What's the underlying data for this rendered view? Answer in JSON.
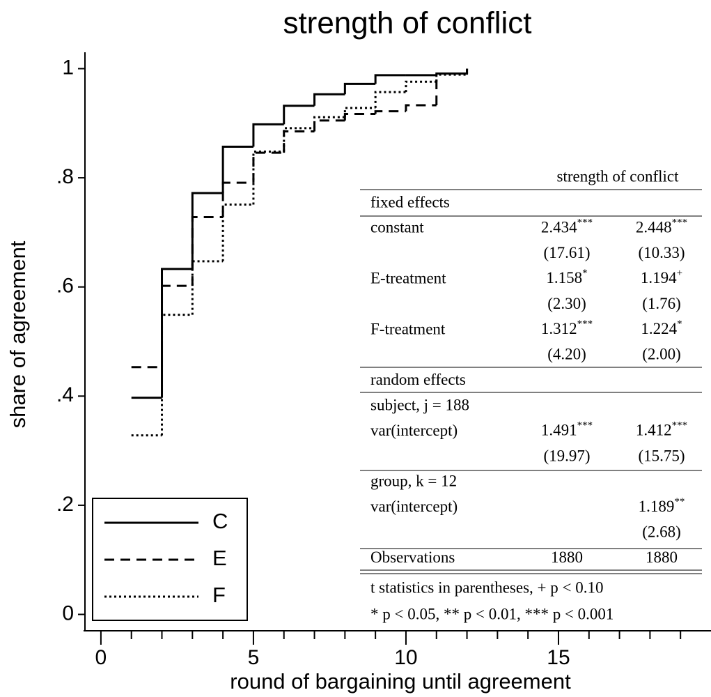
{
  "chart_data": {
    "type": "step",
    "title": "strength of conflict",
    "x_label": "round of bargaining until agreement",
    "y_label": "share of agreement",
    "x": [
      1,
      2,
      3,
      4,
      5,
      6,
      7,
      8,
      9,
      10,
      11,
      12
    ],
    "series": [
      {
        "name": "C",
        "color": "#000000",
        "line_style": "solid",
        "values": [
          0.397,
          0.633,
          0.772,
          0.857,
          0.898,
          0.932,
          0.953,
          0.972,
          0.988,
          0.988,
          0.991,
          1.0
        ]
      },
      {
        "name": "E",
        "color": "#000000",
        "line_style": "dashed",
        "values": [
          0.453,
          0.602,
          0.728,
          0.791,
          0.846,
          0.885,
          0.905,
          0.917,
          0.922,
          0.933,
          0.991,
          1.0
        ]
      },
      {
        "name": "F",
        "color": "#000000",
        "line_style": "dotted",
        "values": [
          0.328,
          0.549,
          0.647,
          0.751,
          0.848,
          0.891,
          0.911,
          0.928,
          0.957,
          0.976,
          0.989,
          1.0
        ]
      }
    ],
    "xlim": [
      -0.5,
      20
    ],
    "xticks": [
      0,
      5,
      10,
      15
    ],
    "xminorticks": [
      1,
      2,
      3,
      4,
      6,
      7,
      8,
      9,
      11,
      12,
      13,
      14,
      16,
      17,
      18,
      19
    ],
    "ylim": [
      -0.03,
      1.03
    ],
    "yticks": [
      0,
      {
        "value": 0.2,
        "label": ".2"
      },
      {
        "value": 0.4,
        "label": ".4"
      },
      {
        "value": 0.6,
        "label": ".6"
      },
      {
        "value": 0.8,
        "label": ".8"
      },
      1
    ],
    "legend": "bottom-left",
    "table": {
      "header": "strength of conflict",
      "rows": [
        [
          "fixed effects",
          null,
          null
        ],
        [
          "constant",
          {
            "text": "2.434",
            "sup": "***"
          },
          {
            "text": "2.448",
            "sup": "***"
          }
        ],
        [
          null,
          "(17.61)",
          "(10.33)"
        ],
        [
          "E-treatment",
          {
            "text": "1.158",
            "sup": "*"
          },
          {
            "text": "1.194",
            "sup": "+"
          }
        ],
        [
          null,
          "(2.30)",
          "(1.76)"
        ],
        [
          "F-treatment",
          {
            "text": "1.312",
            "sup": "***"
          },
          {
            "text": "1.224",
            "sup": "*"
          }
        ],
        [
          null,
          "(4.20)",
          "(2.00)"
        ],
        [
          "random effects",
          null,
          null
        ],
        [
          "subject, j = 188",
          null,
          null
        ],
        [
          "var(intercept)",
          {
            "text": "1.491",
            "sup": "***"
          },
          {
            "text": "1.412",
            "sup": "***"
          }
        ],
        [
          null,
          "(19.97)",
          "(15.75)"
        ],
        [
          "group, k = 12",
          null,
          null
        ],
        [
          "var(intercept)",
          null,
          {
            "text": "1.189",
            "sup": "**"
          }
        ],
        [
          null,
          null,
          "(2.68)"
        ],
        [
          "Observations",
          "1880",
          "1880"
        ]
      ],
      "notes": [
        "t statistics in parentheses, + p < 0.10",
        "* p < 0.05, ** p < 0.01, *** p < 0.001"
      ]
    }
  }
}
